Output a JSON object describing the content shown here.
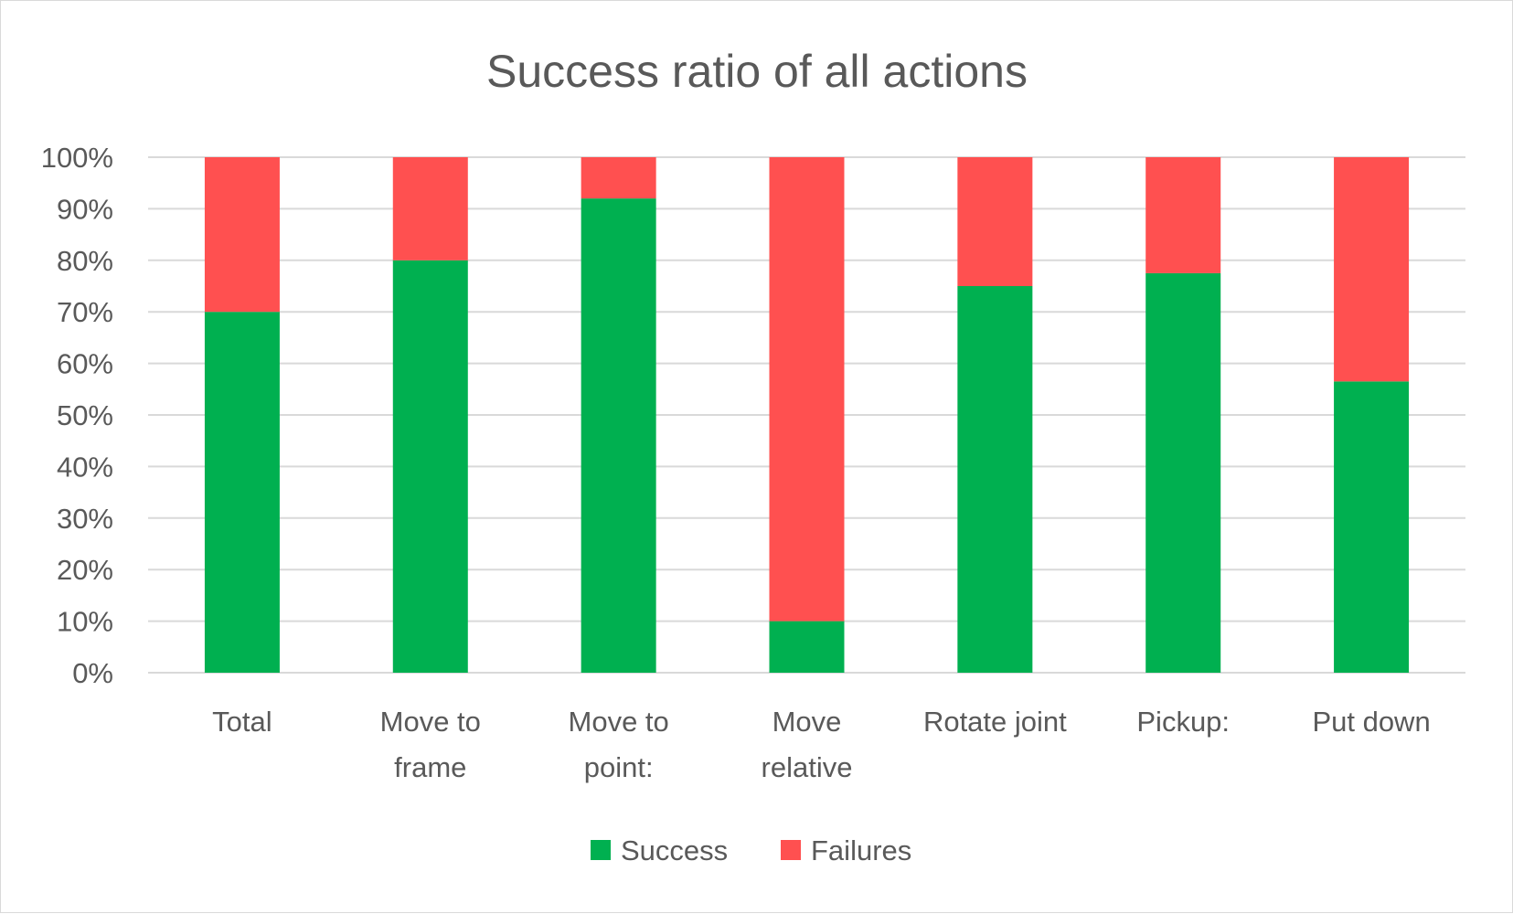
{
  "chart_data": {
    "type": "bar",
    "stacked": true,
    "title": "Success ratio of all actions",
    "categories": [
      [
        "Total"
      ],
      [
        "Move to",
        "frame"
      ],
      [
        "Move to",
        "point:"
      ],
      [
        "Move",
        "relative"
      ],
      [
        "Rotate joint"
      ],
      [
        "Pickup:"
      ],
      [
        "Put down"
      ]
    ],
    "series": [
      {
        "name": "Success",
        "color": "#00b050",
        "values": [
          70,
          80,
          92,
          10,
          75,
          77.5,
          56.5
        ]
      },
      {
        "name": "Failures",
        "color": "#ff5050",
        "values": [
          30,
          20,
          8,
          90,
          25,
          22.5,
          43.5
        ]
      }
    ],
    "ylim": [
      0,
      100
    ],
    "yticks": [
      "0%",
      "10%",
      "20%",
      "30%",
      "40%",
      "50%",
      "60%",
      "70%",
      "80%",
      "90%",
      "100%"
    ],
    "grid": true,
    "legend_position": "bottom",
    "xlabel": "",
    "ylabel": ""
  }
}
